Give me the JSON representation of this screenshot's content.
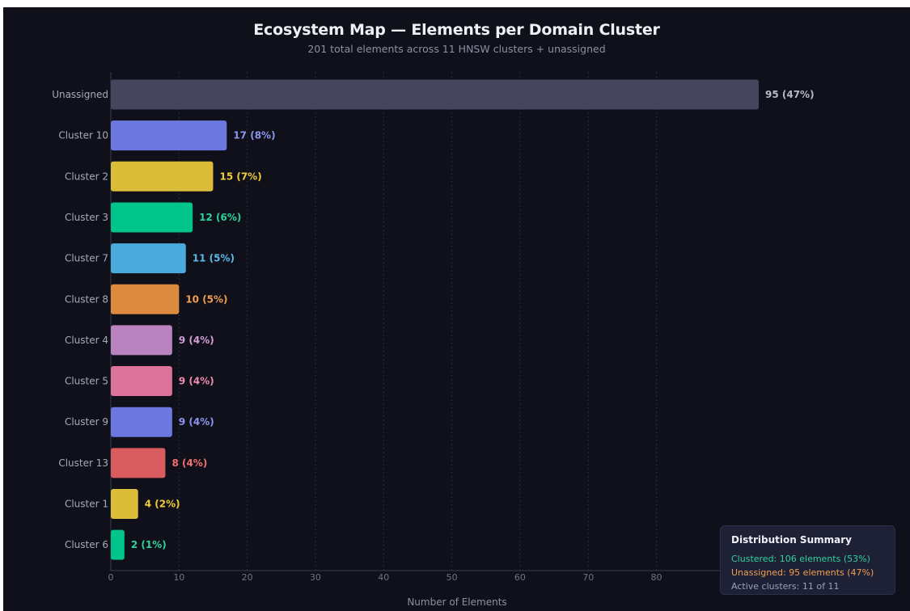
{
  "title": "Ecosystem Map — Elements per Domain Cluster",
  "subtitle": "201 total elements across 11 HNSW clusters + unassigned",
  "summary": {
    "title": "Distribution Summary",
    "clustered": "Clustered: 106 elements (53%)",
    "unassigned": "Unassigned: 95 elements (47%)",
    "active": "Active clusters: 11 of 11"
  },
  "colors": {
    "background": "#0f1019",
    "clustered_text": "#2fd39a",
    "unassigned_text": "#f0a050",
    "active_text": "#9aa0b5"
  },
  "chart_data": {
    "type": "bar",
    "orientation": "horizontal",
    "xlabel": "Number of Elements",
    "ylabel": "",
    "xlim": [
      0,
      95
    ],
    "xticks": [
      0,
      10,
      20,
      30,
      40,
      50,
      60,
      70,
      80
    ],
    "grid": "vertical dotted",
    "categories": [
      "Unassigned",
      "Cluster 10",
      "Cluster 2",
      "Cluster 3",
      "Cluster 7",
      "Cluster 8",
      "Cluster 4",
      "Cluster 5",
      "Cluster 9",
      "Cluster 13",
      "Cluster 1",
      "Cluster 6"
    ],
    "values": [
      95,
      17,
      15,
      12,
      11,
      10,
      9,
      9,
      9,
      8,
      4,
      2
    ],
    "value_labels": [
      "95 (47%)",
      "17 (8%)",
      "15 (7%)",
      "12 (6%)",
      "11 (5%)",
      "10 (5%)",
      "9 (4%)",
      "9 (4%)",
      "9 (4%)",
      "8 (4%)",
      "4 (2%)",
      "2 (1%)"
    ],
    "bar_colors": [
      "#45455e",
      "#6c78e0",
      "#dcbd3a",
      "#00c48a",
      "#4aaadc",
      "#dc8a3e",
      "#b883be",
      "#dc739b",
      "#6c78e0",
      "#d95d5e",
      "#dcbd3a",
      "#00c48a"
    ],
    "label_colors": [
      "#b6b9c8",
      "#8c96f2",
      "#f2cd38",
      "#2fd39a",
      "#5ab8ea",
      "#f0a050",
      "#d59cd8",
      "#ef8ab0",
      "#8c96f2",
      "#f27070",
      "#f2cd38",
      "#2fd39a"
    ]
  }
}
